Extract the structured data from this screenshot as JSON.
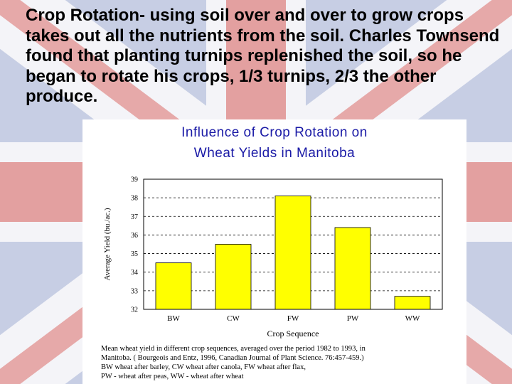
{
  "heading": {
    "text": "Crop Rotation- using soil over and over to grow crops takes out all the nutrients from the soil.  Charles Townsend found that planting turnips replenished the soil, so he began to rotate his crops, 1/3 turnips, 2/3 the other produce."
  },
  "figure": {
    "title_line1": "Influence of Crop Rotation on",
    "title_line2": "Wheat Yields in Manitoba",
    "caption_line1": "Mean wheat      yield in different crop sequences, averaged over the period 1982 to 1993, in",
    "caption_line2": "Manitoba. (      Bourgeois and Entz, 1996, Canadian Journal of Plant Science. 76:457-459.)",
    "caption_line3": "BW   wheat after barley, CW   wheat after canola, FW   wheat after flax,",
    "caption_line4": "PW - wheat after peas,      WW - wheat after wheat"
  },
  "colors": {
    "bar_fill": "#ffff00",
    "title": "#1a1aa6",
    "flag_blue": "#8f9ac7",
    "flag_red": "#e3a3a3"
  },
  "chart_data": {
    "type": "bar",
    "title": "Influence of Crop Rotation on Wheat Yields in Manitoba",
    "xlabel": "Crop Sequence",
    "ylabel": "Average Yield (bu./ac.)",
    "categories": [
      "BW",
      "CW",
      "FW",
      "PW",
      "WW"
    ],
    "values": [
      34.5,
      35.5,
      38.1,
      36.4,
      32.7
    ],
    "ylim": [
      32,
      39
    ],
    "yticks": [
      "32",
      "33",
      "34",
      "35",
      "36",
      "37",
      "38",
      "39"
    ],
    "grid": "dashed horizontal",
    "legend": "none"
  }
}
